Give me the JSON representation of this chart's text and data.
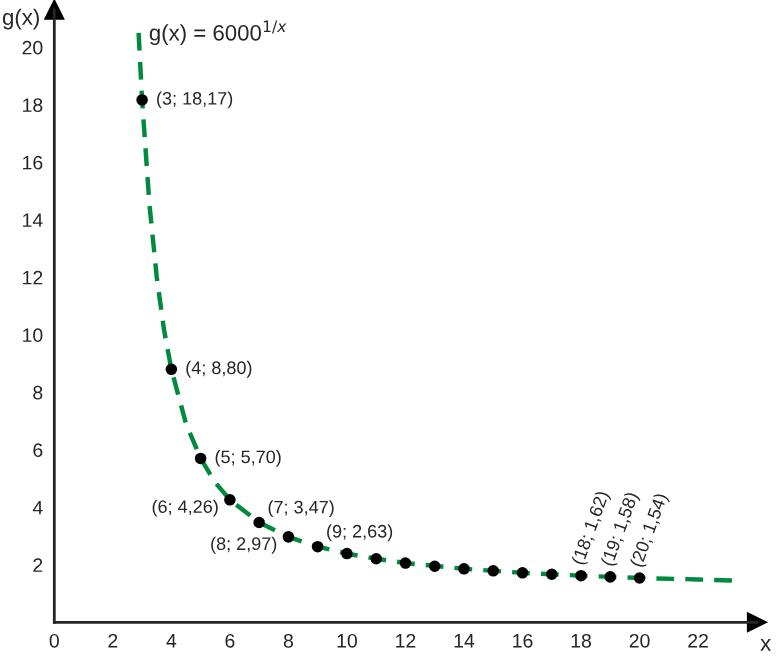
{
  "chart_data": {
    "type": "scatter",
    "xlabel": "x",
    "ylabel": "g(x)",
    "xlim": [
      0,
      24
    ],
    "ylim": [
      0,
      21.3
    ],
    "xticks": [
      0,
      2,
      4,
      6,
      8,
      10,
      12,
      14,
      16,
      18,
      20,
      22
    ],
    "yticks": [
      2,
      4,
      6,
      8,
      10,
      12,
      14,
      16,
      18,
      20
    ],
    "grid": false,
    "legend": false,
    "series": [
      {
        "type": "line",
        "name": "g(x) = 6000$^{1/x}$",
        "color": "#008a3e",
        "line_style": "dashed",
        "marker": "none",
        "x": [
          2.88,
          3,
          3.25,
          3.5,
          3.75,
          4,
          4.5,
          5,
          5.5,
          6,
          7,
          8,
          9,
          10,
          11,
          12,
          14,
          16,
          18,
          20,
          22,
          23.2
        ],
        "values": [
          20.5,
          18.17,
          14.54,
          12.01,
          10.17,
          8.8,
          6.91,
          5.7,
          4.86,
          4.26,
          3.47,
          2.97,
          2.63,
          2.39,
          2.21,
          2.06,
          1.86,
          1.72,
          1.62,
          1.54,
          1.49,
          1.45
        ]
      },
      {
        "color": "#000000",
        "marker": "circle",
        "x": [
          3,
          4,
          5,
          6,
          7,
          8,
          9,
          10,
          11,
          12,
          13,
          14,
          15,
          16,
          17,
          18,
          19,
          20
        ],
        "values": [
          18.17,
          8.8,
          5.7,
          4.26,
          3.47,
          2.97,
          2.63,
          2.39,
          2.21,
          2.06,
          1.95,
          1.86,
          1.79,
          1.72,
          1.67,
          1.62,
          1.58,
          1.54
        ],
        "value_labels": [
          "(3; 18,17)",
          "(4; 8,80)",
          "(5; 5,70)",
          "(6; 4,26)",
          "(7; 3,47)",
          "(8; 2,97)",
          "(9; 2,63)",
          null,
          null,
          null,
          null,
          null,
          null,
          null,
          null,
          "(18; 1,62)",
          "(19; 1,58)",
          "(20; 1,54)"
        ]
      }
    ]
  }
}
